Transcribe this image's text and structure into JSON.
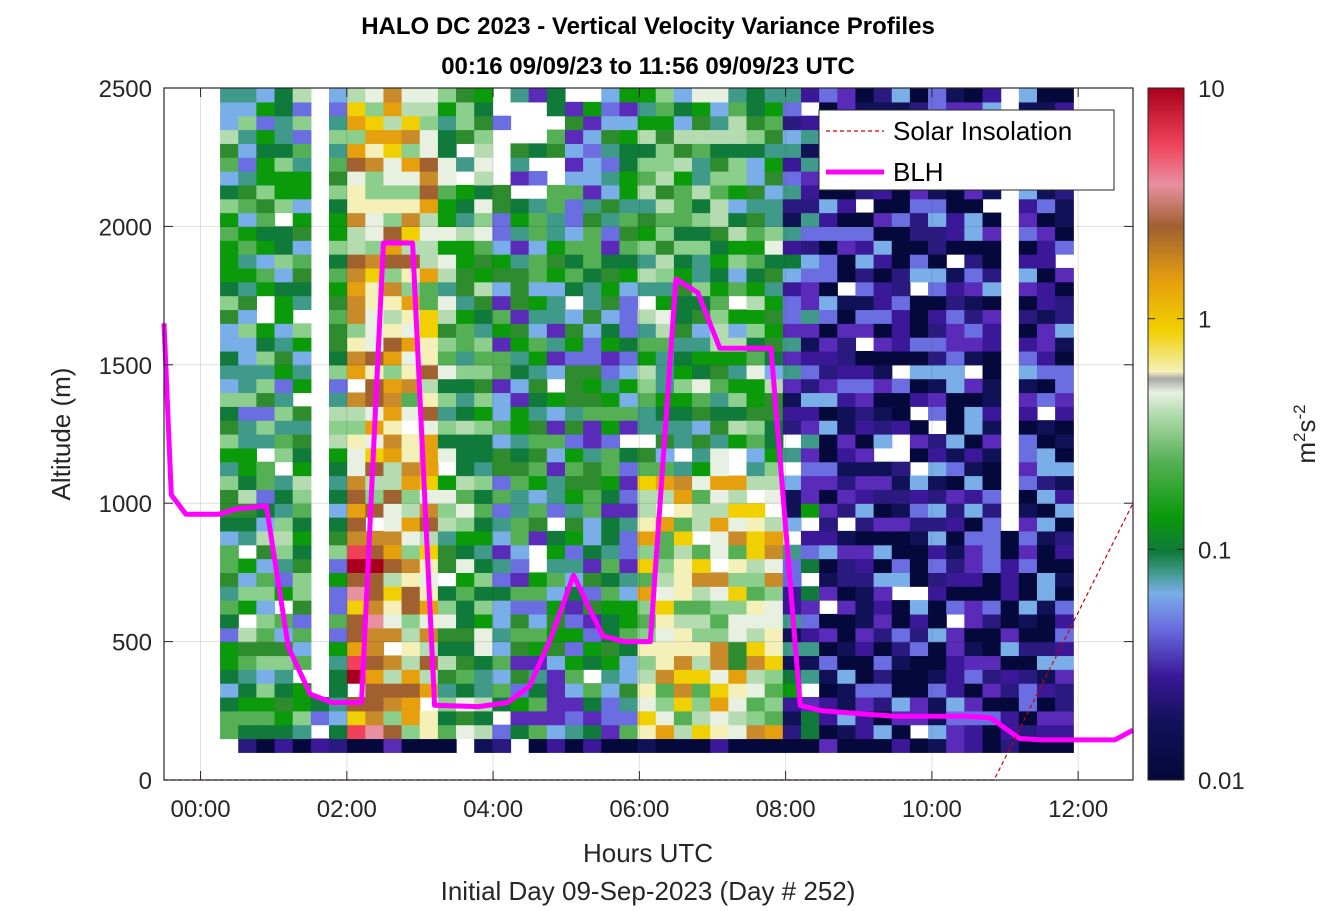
{
  "chart_data": {
    "type": "heatmap",
    "title": "HALO DC 2023 - Vertical Velocity Variance Profiles",
    "subtitle": "00:16 09/09/23 to 11:56 09/09/23  UTC",
    "xlabel": "Hours UTC",
    "xlabel2": "Initial Day 09-Sep-2023 (Day # 252)",
    "ylabel": "Altitude (m)",
    "xlim": [
      -0.5,
      12.75
    ],
    "ylim": [
      0,
      2500
    ],
    "x_ticks": [
      0,
      2,
      4,
      6,
      8,
      10,
      12
    ],
    "x_tick_labels": [
      "00:00",
      "02:00",
      "04:00",
      "06:00",
      "08:00",
      "10:00",
      "12:00"
    ],
    "y_ticks": [
      0,
      500,
      1000,
      1500,
      2000,
      2500
    ],
    "y_tick_labels": [
      "0",
      "500",
      "1000",
      "1500",
      "2000",
      "2500"
    ],
    "grid": true,
    "colorbar": {
      "label_base": "m",
      "label_exp1": "2",
      "label_mid": "s",
      "label_exp2": "-2",
      "scale": "log",
      "range": [
        0.01,
        10
      ],
      "ticks": [
        0.01,
        0.1,
        1,
        10
      ],
      "tick_labels": [
        "0.01",
        "0.1",
        "1",
        "10"
      ]
    },
    "legend": {
      "placement": "top-right",
      "entries": [
        {
          "label": "Solar Insolation",
          "color": "#cc0000",
          "style": "dashed"
        },
        {
          "label": "BLH",
          "color": "#ff00ff",
          "style": "solid"
        }
      ]
    },
    "time_start_hours": 0.2667,
    "time_end_hours": 11.9333,
    "gate_bottom_m": 100,
    "gate_top_m": 2500,
    "series": [
      {
        "name": "BLH",
        "color": "#ff00ff",
        "x": [
          -0.5,
          -0.4,
          -0.2,
          0.25,
          0.5,
          0.9,
          1.2,
          1.5,
          1.8,
          2.2,
          2.5,
          2.9,
          3.2,
          3.8,
          4.2,
          4.5,
          4.8,
          5.1,
          5.5,
          5.8,
          6.15,
          6.5,
          6.8,
          7.1,
          7.5,
          7.8,
          8.2,
          8.5,
          9.0,
          9.5,
          10.0,
          10.5,
          10.8,
          11.2,
          11.5,
          12.0,
          12.5,
          12.75
        ],
        "y": [
          1650,
          1030,
          960,
          960,
          980,
          990,
          480,
          310,
          280,
          280,
          1940,
          1940,
          270,
          265,
          280,
          340,
          520,
          740,
          520,
          500,
          500,
          1810,
          1760,
          1560,
          1560,
          1560,
          270,
          250,
          240,
          230,
          230,
          230,
          225,
          150,
          145,
          145,
          145,
          180
        ]
      },
      {
        "name": "Solar Insolation",
        "color": "#cc0000",
        "x": [
          -0.5,
          10.85,
          12.75
        ],
        "y": [
          0,
          0,
          1000
        ]
      }
    ]
  }
}
